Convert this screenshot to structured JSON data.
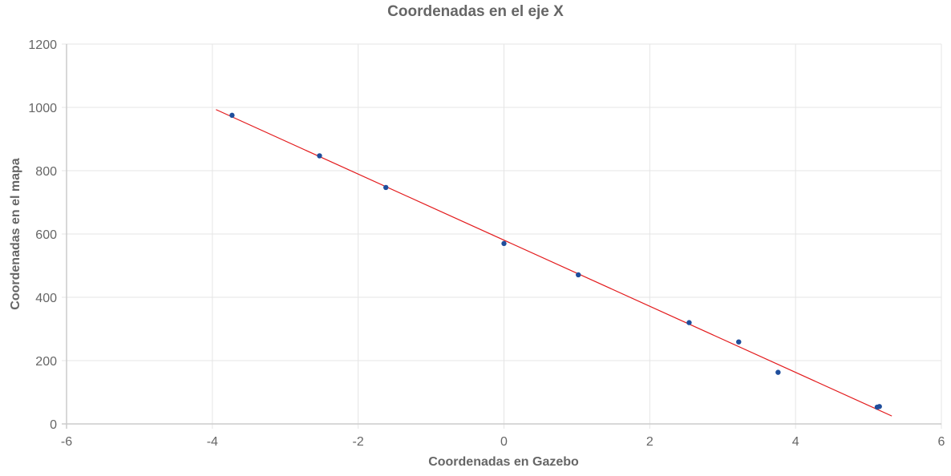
{
  "chart_data": {
    "type": "scatter",
    "title": "Coordenadas en el eje X",
    "xlabel": "Coordenadas en Gazebo",
    "ylabel": "Coordenadas en el mapa",
    "xlim": [
      -6,
      6
    ],
    "ylim": [
      0,
      1200
    ],
    "xticks": [
      -6,
      -4,
      -2,
      0,
      2,
      4,
      6
    ],
    "yticks": [
      0,
      200,
      400,
      600,
      800,
      1000,
      1200
    ],
    "grid": true,
    "series": [
      {
        "kind": "points",
        "color": "#1f4e9c",
        "points": [
          {
            "x": -3.73,
            "y": 975
          },
          {
            "x": -2.53,
            "y": 847
          },
          {
            "x": -1.62,
            "y": 747
          },
          {
            "x": 0.0,
            "y": 570
          },
          {
            "x": 1.02,
            "y": 471
          },
          {
            "x": 2.54,
            "y": 320
          },
          {
            "x": 3.22,
            "y": 259
          },
          {
            "x": 3.76,
            "y": 163
          },
          {
            "x": 5.12,
            "y": 53
          },
          {
            "x": 5.15,
            "y": 55
          }
        ]
      },
      {
        "kind": "trendline",
        "color": "#e31a1c",
        "points": [
          {
            "x": -3.95,
            "y": 993
          },
          {
            "x": 5.32,
            "y": 25
          }
        ]
      }
    ]
  }
}
